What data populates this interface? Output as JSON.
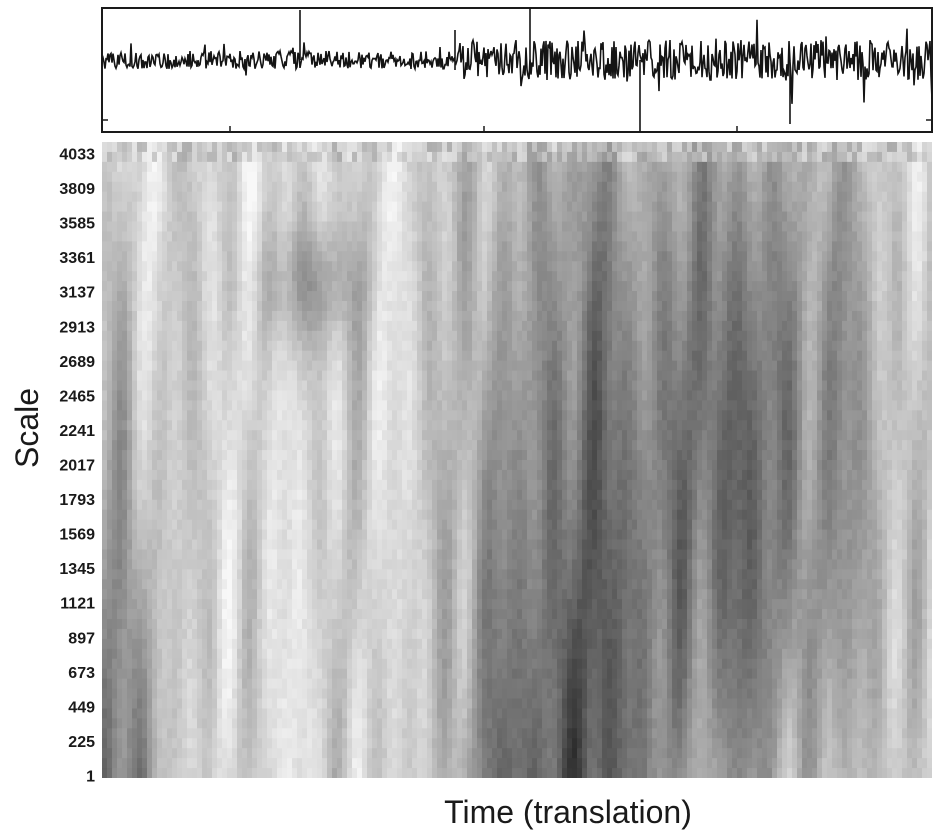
{
  "chart_data": [
    {
      "type": "line",
      "panel": "signal",
      "title": "",
      "xlabel": "",
      "ylabel": "",
      "grid": false,
      "description_of_series": "single black noisy time-series trace; quiet in first half, larger fluctuations in second half",
      "color": "#141414"
    },
    {
      "type": "heatmap",
      "panel": "scalogram",
      "title": "",
      "xlabel": "Time (translation)",
      "ylabel": "Scale",
      "y_ticks": [
        "4033",
        "3809",
        "3585",
        "3361",
        "3137",
        "2913",
        "2689",
        "2465",
        "2241",
        "2017",
        "1793",
        "1569",
        "1345",
        "1121",
        "897",
        "673",
        "449",
        "225",
        "1"
      ],
      "ylim": [
        1,
        4033
      ],
      "colormap": "grayscale (white = low, black = high)",
      "grid": false
    }
  ],
  "colors": {
    "background": "#ffffff",
    "axis": "#1a1a1a",
    "trace": "#141414"
  }
}
